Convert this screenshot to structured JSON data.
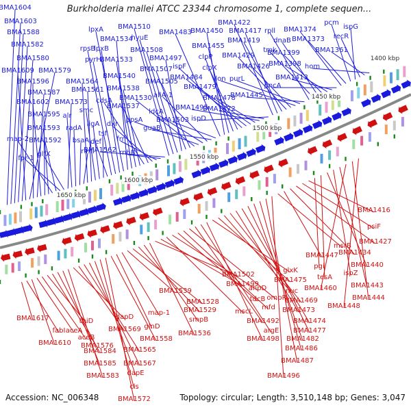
{
  "title": "Burkholderia mallei ATCC 23344 chromosome 1, complete sequen...",
  "footer": {
    "accession": "Accession: NC_006348",
    "stats": "Topology: circular; Length: 3,510,148 bp; Genes: 3,047"
  },
  "scale_labels": [
    "1400 kbp",
    "1450 kbp",
    "1500 kbp",
    "1550 kbp",
    "1600 kbp",
    "1650 kbp"
  ],
  "top_labels": [
    "BMA1604",
    "BMA1603",
    "BMA1588",
    "BMA1582",
    "BMA1580",
    "BMA1609",
    "BMA1579",
    "BMA1596",
    "BMA1587",
    "BMA1602",
    "BMA1595",
    "BMA1593",
    "map-2",
    "BMA1592",
    "fpr-1",
    "glfX",
    "BMA1573",
    "alr",
    "radA",
    "bsaA",
    "rimI",
    "BMA1564",
    "BMA1561",
    "smc",
    "ligA",
    "tsf",
    "def",
    "rpsB",
    "pyrH",
    "lpxB",
    "lpxA",
    "BMA1534",
    "BMA1533",
    "BMA1540",
    "BMA1538",
    "cdsA",
    "BMA1537",
    "dxr",
    "frr",
    "rnhB",
    "BMA1562",
    "BMA1510",
    "hyuE",
    "BMA1508",
    "BMA1497",
    "BMA1507",
    "BMA1505",
    "BMA1530",
    "ppsA",
    "ldcA",
    "allA-1",
    "guaB",
    "BMA1503",
    "BMA1483",
    "BMA1450",
    "BMA1455",
    "clpP",
    "clpX",
    "ispF",
    "BMA1484",
    "BMA1479",
    "BMA1478",
    "BMA1495",
    "BMA1472",
    "ispD",
    "BMA1422",
    "BMA1417",
    "BMA1419",
    "BMA1429",
    "BMA1426",
    "lon",
    "purL",
    "BMA1445",
    "rpll",
    "tmk",
    "dnaB",
    "BMA1399",
    "BMA1398",
    "BMA1413",
    "pncA",
    "BMA1374",
    "BMA1373",
    "pcm",
    "ispG",
    "recR",
    "BMA1361",
    "hom"
  ],
  "bottom_labels": [
    "BMA1617",
    "fabI",
    "BMA1610",
    "aceA",
    "aceB",
    "thiD",
    "BMA1576",
    "BMA1584",
    "BMA1585",
    "BMA1583",
    "dapD",
    "BMA1569",
    "BMA1565",
    "BMA1567",
    "dapE",
    "cls",
    "BMA1572",
    "BMA1558",
    "glnD",
    "map-1",
    "BMA1539",
    "BMA1528",
    "BMA1529",
    "smpB",
    "BMA1536",
    "BMA1502",
    "BMA1499",
    "mscL",
    "ahpD",
    "tdcB",
    "mfd",
    "ompR",
    "BMA1492",
    "argE",
    "BMA1498",
    "glxK",
    "BMA1475",
    "nuc",
    "BMA1469",
    "BMA1473",
    "BMA1474",
    "BMA1477",
    "BMA1482",
    "BMA1486",
    "BMA1487",
    "BMA1496",
    "msrB",
    "BMA1447",
    "BMA1434",
    "BMA1427",
    "psiF",
    "BMA1416",
    "pgi",
    "tesA",
    "BMA1440",
    "ispZ",
    "BMA1443",
    "BMA1460",
    "BMA1444",
    "BMA1448"
  ],
  "colors": {
    "forward": "#1a1adc",
    "reverse": "#d01010",
    "backbone": "#888888",
    "orf": "#1a8a1a"
  }
}
